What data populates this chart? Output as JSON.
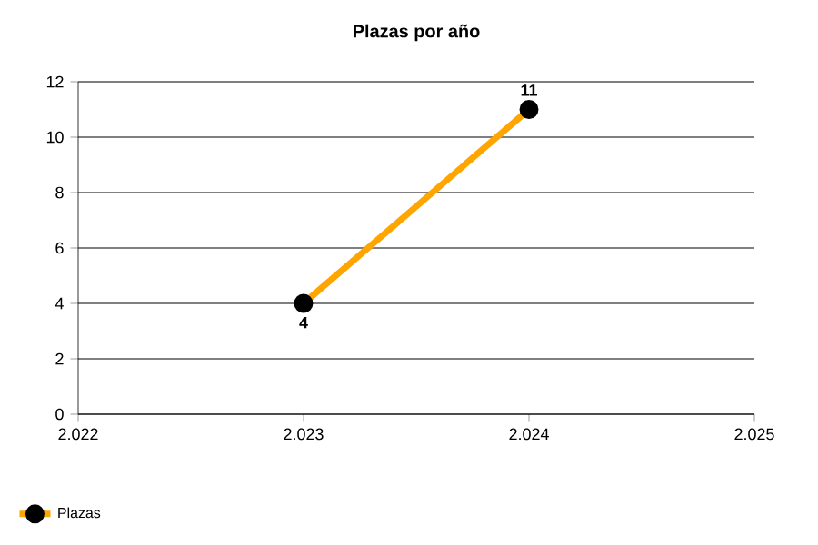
{
  "chart_data": {
    "type": "line",
    "title": "Plazas por año",
    "x": [
      2023,
      2024
    ],
    "series": [
      {
        "name": "Plazas",
        "color": "#ffa500",
        "values": [
          4,
          11
        ]
      }
    ],
    "xlim": [
      2022,
      2025
    ],
    "xticks": [
      {
        "value": 2022,
        "label": "2.022"
      },
      {
        "value": 2023,
        "label": "2.023"
      },
      {
        "value": 2024,
        "label": "2.024"
      },
      {
        "value": 2025,
        "label": "2.025"
      }
    ],
    "ylim": [
      0,
      12
    ],
    "yticks": [
      0,
      2,
      4,
      6,
      8,
      10,
      12
    ],
    "grid": "y",
    "legend": "bottom left",
    "marker": "circle",
    "line_style": "solid",
    "data_labels": true
  }
}
